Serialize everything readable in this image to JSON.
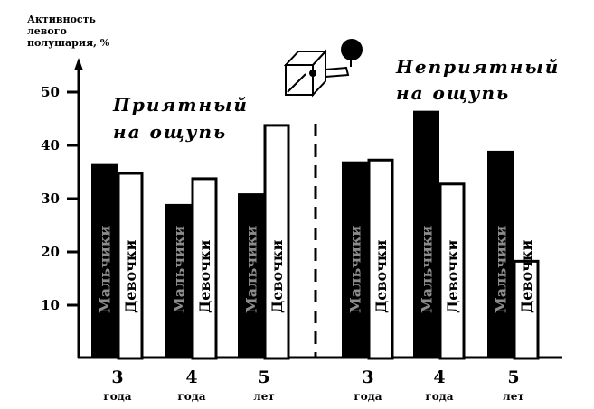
{
  "chart_data": {
    "type": "bar",
    "ylabel": [
      "Активность",
      "левого",
      "полушария, %"
    ],
    "ylim": [
      0,
      55
    ],
    "yticks": [
      10,
      20,
      30,
      40,
      50
    ],
    "grid": false,
    "groups": [
      {
        "label": "Приятный на ощупь",
        "label_lines": [
          "Приятный",
          "на ощупь"
        ]
      },
      {
        "label": "Неприятный на ощупь",
        "label_lines": [
          "Неприятный",
          "на ощупь"
        ]
      }
    ],
    "categories": [
      {
        "num": "3",
        "unit": "года",
        "group": 0
      },
      {
        "num": "4",
        "unit": "года",
        "group": 0
      },
      {
        "num": "5",
        "unit": "лет",
        "group": 0
      },
      {
        "num": "3",
        "unit": "года",
        "group": 1
      },
      {
        "num": "4",
        "unit": "года",
        "group": 1
      },
      {
        "num": "5",
        "unit": "лет",
        "group": 1
      }
    ],
    "series": [
      {
        "name": "Мальчики",
        "color": "#000000",
        "values": [
          36.5,
          29,
          31,
          37,
          46.5,
          39
        ]
      },
      {
        "name": "Девочки",
        "color": "#ffffffff",
        "values": [
          35,
          34,
          44,
          37.5,
          33,
          18.5
        ]
      }
    ]
  }
}
